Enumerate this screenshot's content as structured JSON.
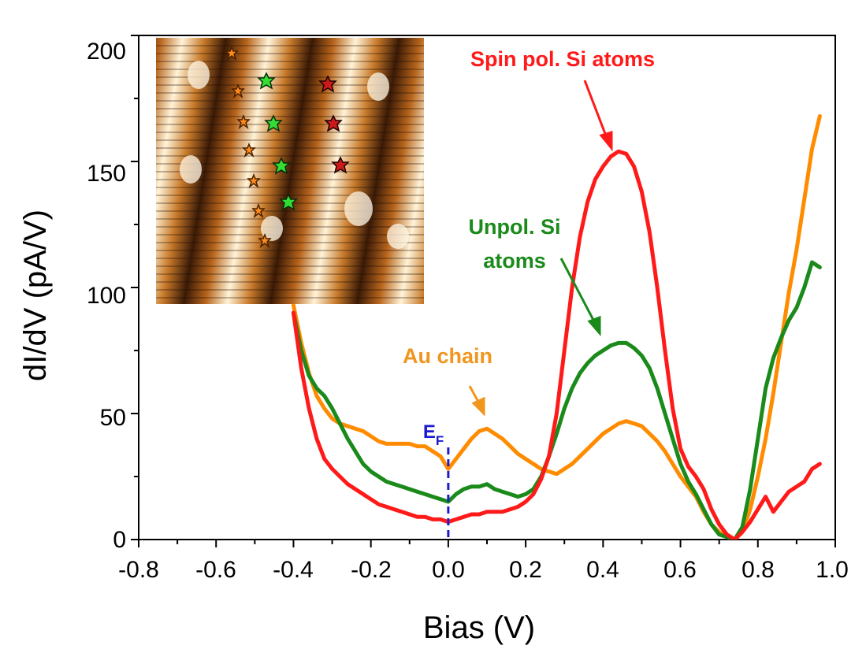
{
  "chart_data": {
    "type": "line",
    "xlabel": "Bias (V)",
    "ylabel": "dI/dV (pA/V)",
    "xlim": [
      -0.8,
      1.0
    ],
    "ylim": [
      0,
      200
    ],
    "x_ticks": [
      "-0.8",
      "-0.6",
      "-0.4",
      "-0.2",
      "0.0",
      "0.2",
      "0.4",
      "0.6",
      "0.8",
      "1.0"
    ],
    "y_ticks": [
      "0",
      "50",
      "100",
      "150",
      "200"
    ],
    "grid": false,
    "legend": "none",
    "series": [
      {
        "color": "#ff8c00",
        "x": [
          -0.4,
          -0.38,
          -0.36,
          -0.34,
          -0.32,
          -0.3,
          -0.28,
          -0.26,
          -0.24,
          -0.22,
          -0.2,
          -0.18,
          -0.16,
          -0.14,
          -0.12,
          -0.1,
          -0.08,
          -0.06,
          -0.04,
          -0.02,
          0.0,
          0.02,
          0.04,
          0.06,
          0.08,
          0.1,
          0.12,
          0.14,
          0.16,
          0.18,
          0.2,
          0.22,
          0.24,
          0.26,
          0.28,
          0.3,
          0.32,
          0.34,
          0.36,
          0.38,
          0.4,
          0.42,
          0.44,
          0.46,
          0.48,
          0.5,
          0.52,
          0.54,
          0.56,
          0.58,
          0.6,
          0.62,
          0.64,
          0.66,
          0.68,
          0.7,
          0.72,
          0.74,
          0.76,
          0.78,
          0.8,
          0.82,
          0.84,
          0.86,
          0.88,
          0.9,
          0.92,
          0.94,
          0.96
        ],
        "y": [
          93,
          78,
          66,
          57,
          52,
          48,
          46,
          45,
          44,
          43,
          41,
          39,
          38,
          38,
          38,
          38,
          37,
          37,
          35,
          33,
          28,
          32,
          36,
          40,
          43,
          44,
          42,
          40,
          37,
          34,
          32,
          30,
          28,
          27,
          26,
          28,
          30,
          33,
          36,
          39,
          42,
          44,
          46,
          47,
          46,
          45,
          42,
          39,
          35,
          30,
          25,
          21,
          17,
          11,
          6,
          3,
          1,
          0,
          3,
          12,
          25,
          40,
          58,
          78,
          98,
          115,
          135,
          155,
          168
        ]
      },
      {
        "color": "#1a8a1a",
        "x": [
          -0.4,
          -0.38,
          -0.36,
          -0.34,
          -0.32,
          -0.3,
          -0.28,
          -0.26,
          -0.24,
          -0.22,
          -0.2,
          -0.18,
          -0.16,
          -0.14,
          -0.12,
          -0.1,
          -0.08,
          -0.06,
          -0.04,
          -0.02,
          0.0,
          0.02,
          0.04,
          0.06,
          0.08,
          0.1,
          0.12,
          0.14,
          0.16,
          0.18,
          0.2,
          0.22,
          0.24,
          0.26,
          0.28,
          0.3,
          0.32,
          0.34,
          0.36,
          0.38,
          0.4,
          0.42,
          0.44,
          0.46,
          0.48,
          0.5,
          0.52,
          0.54,
          0.56,
          0.58,
          0.6,
          0.62,
          0.64,
          0.66,
          0.68,
          0.7,
          0.72,
          0.74,
          0.76,
          0.78,
          0.8,
          0.82,
          0.84,
          0.86,
          0.88,
          0.9,
          0.92,
          0.94,
          0.96
        ],
        "y": [
          90,
          75,
          65,
          60,
          57,
          52,
          46,
          40,
          35,
          30,
          27,
          25,
          23,
          22,
          21,
          20,
          19,
          18,
          17,
          16,
          15,
          18,
          20,
          21,
          21,
          22,
          20,
          19,
          18,
          17,
          18,
          20,
          25,
          33,
          42,
          52,
          60,
          66,
          70,
          73,
          75,
          77,
          78,
          78,
          76,
          73,
          68,
          60,
          50,
          40,
          30,
          23,
          18,
          12,
          6,
          2,
          1,
          0,
          5,
          20,
          40,
          60,
          72,
          80,
          87,
          92,
          100,
          110,
          108
        ]
      },
      {
        "color": "#ff1a1a",
        "x": [
          -0.4,
          -0.38,
          -0.36,
          -0.34,
          -0.32,
          -0.3,
          -0.28,
          -0.26,
          -0.24,
          -0.22,
          -0.2,
          -0.18,
          -0.16,
          -0.14,
          -0.12,
          -0.1,
          -0.08,
          -0.06,
          -0.04,
          -0.02,
          0.0,
          0.02,
          0.04,
          0.06,
          0.08,
          0.1,
          0.12,
          0.14,
          0.16,
          0.18,
          0.2,
          0.22,
          0.24,
          0.26,
          0.28,
          0.3,
          0.32,
          0.34,
          0.36,
          0.38,
          0.4,
          0.42,
          0.44,
          0.46,
          0.48,
          0.5,
          0.52,
          0.54,
          0.56,
          0.58,
          0.6,
          0.62,
          0.64,
          0.66,
          0.68,
          0.7,
          0.72,
          0.74,
          0.76,
          0.78,
          0.8,
          0.82,
          0.84,
          0.86,
          0.88,
          0.9,
          0.92,
          0.94,
          0.96
        ],
        "y": [
          90,
          68,
          52,
          40,
          32,
          28,
          25,
          22,
          20,
          18,
          16,
          14,
          13,
          12,
          11,
          10,
          9,
          9,
          8,
          8,
          7,
          8,
          9,
          10,
          10,
          11,
          11,
          11,
          12,
          13,
          15,
          18,
          24,
          33,
          50,
          75,
          100,
          120,
          134,
          143,
          148,
          152,
          154,
          153,
          148,
          138,
          122,
          100,
          75,
          52,
          36,
          29,
          25,
          20,
          12,
          6,
          2,
          0,
          3,
          7,
          12,
          17,
          11,
          15,
          19,
          21,
          23,
          28,
          30
        ]
      }
    ],
    "annotations": {
      "spin_pol": "Spin pol. Si atoms",
      "unpol_line1": "Unpol. Si",
      "unpol_line2": "atoms",
      "au_chain": "Au chain",
      "ef": "E",
      "ef_sub": "F"
    },
    "colors": {
      "spin_pol": "#ff1a1a",
      "unpol": "#1a8a1a",
      "au_chain": "#f0961e",
      "ef": "#1a1ad0"
    },
    "ef_marker_x": 0.0
  }
}
